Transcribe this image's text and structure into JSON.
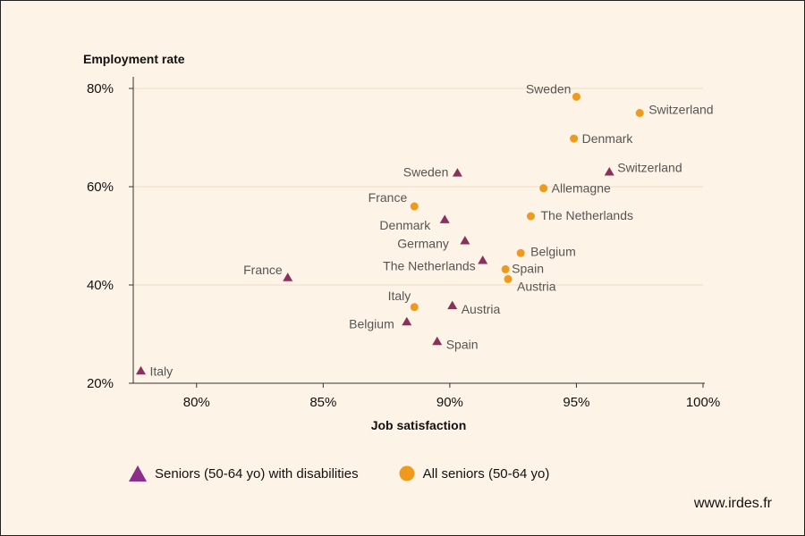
{
  "colors": {
    "background": "#fdf4e7",
    "triangle": "#8b2f5c",
    "circle": "#ef9a1a",
    "legend_triangle": "#8b2f8b",
    "grid": "#f0dcc0"
  },
  "chart_data": {
    "type": "scatter",
    "xlabel": "Job satisfaction",
    "ylabel": "Employment rate",
    "xlim": [
      77.5,
      100
    ],
    "ylim": [
      20,
      82
    ],
    "x_ticks": [
      80,
      85,
      90,
      95,
      100
    ],
    "y_ticks": [
      20,
      40,
      60,
      80
    ],
    "x_tick_labels": [
      "80%",
      "85%",
      "90%",
      "95%",
      "100%"
    ],
    "y_tick_labels": [
      "20%",
      "40%",
      "60%",
      "80%"
    ],
    "grid": "horizontal",
    "series": [
      {
        "name": "Seniors (50-64 yo) with disabilities",
        "marker": "triangle",
        "points": [
          {
            "label": "Italy",
            "x": 77.8,
            "y": 22.5
          },
          {
            "label": "France",
            "x": 83.6,
            "y": 41.5
          },
          {
            "label": "Belgium",
            "x": 88.3,
            "y": 32.5
          },
          {
            "label": "Spain",
            "x": 89.5,
            "y": 28.5
          },
          {
            "label": "Austria",
            "x": 90.1,
            "y": 35.8
          },
          {
            "label": "Denmark",
            "x": 89.8,
            "y": 53.3
          },
          {
            "label": "Germany",
            "x": 90.6,
            "y": 49.0
          },
          {
            "label": "The Netherlands",
            "x": 91.3,
            "y": 45.0
          },
          {
            "label": "Sweden",
            "x": 90.3,
            "y": 62.8
          },
          {
            "label": "Switzerland",
            "x": 96.3,
            "y": 63.0
          }
        ]
      },
      {
        "name": "All seniors (50-64 yo)",
        "marker": "circle",
        "points": [
          {
            "label": "Sweden",
            "x": 95.0,
            "y": 78.3
          },
          {
            "label": "Switzerland",
            "x": 97.5,
            "y": 75.0
          },
          {
            "label": "Denmark",
            "x": 94.9,
            "y": 69.8
          },
          {
            "label": "Allemagne",
            "x": 93.7,
            "y": 59.7
          },
          {
            "label": "The Netherlands",
            "x": 93.2,
            "y": 54.0
          },
          {
            "label": "France",
            "x": 88.6,
            "y": 56.0
          },
          {
            "label": "Belgium",
            "x": 92.8,
            "y": 46.5
          },
          {
            "label": "Spain",
            "x": 92.2,
            "y": 43.2
          },
          {
            "label": "Austria",
            "x": 92.3,
            "y": 41.2
          },
          {
            "label": "Italy",
            "x": 88.6,
            "y": 35.5
          }
        ]
      }
    ],
    "legend_position": "bottom-left"
  },
  "credit": "www.irdes.fr"
}
